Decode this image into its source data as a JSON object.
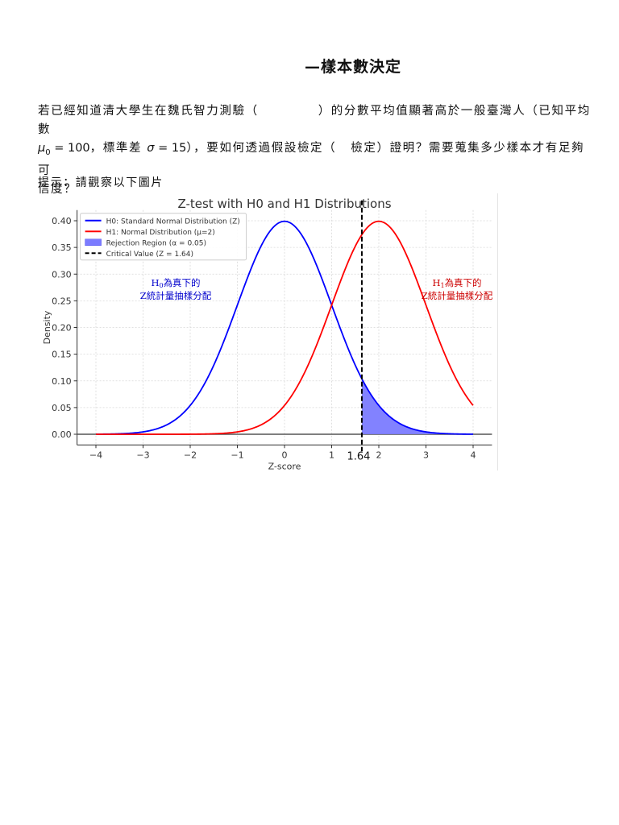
{
  "document": {
    "title": "—樣本數決定",
    "question": {
      "line1_a": "若已經知道清大學生在魏氏智力測驗（",
      "line1_b": "）的分數平均值顯著高於一般臺灣人（已知平均數",
      "line2_mu": "μ₀ = 100",
      "line2_a": "，標準差",
      "line2_sigma": "σ = 15",
      "line2_b": "），要如何透過假設檢定（",
      "line2_c": "檢定）證明？需要蒐集多少樣本才有足夠可",
      "line3": "信度？"
    },
    "hint": "提示：請觀察以下圖片"
  },
  "chart_data": {
    "type": "line",
    "title": "Z-test with H0 and H1 Distributions",
    "xlabel": "Z-score",
    "ylabel": "Density",
    "xlim": [
      -4.4,
      4.4
    ],
    "ylim": [
      -0.02,
      0.42
    ],
    "xticks": [
      -4,
      -3,
      -2,
      -1,
      0,
      1,
      2,
      3,
      4
    ],
    "xtick_labels": [
      "−4",
      "−3",
      "−2",
      "−1",
      "0",
      "1",
      "2",
      "3",
      "4"
    ],
    "yticks": [
      0.0,
      0.05,
      0.1,
      0.15,
      0.2,
      0.25,
      0.3,
      0.35,
      0.4
    ],
    "ytick_labels": [
      "0.00",
      "0.05",
      "0.10",
      "0.15",
      "0.20",
      "0.25",
      "0.30",
      "0.35",
      "0.40"
    ],
    "grid": true,
    "legend_position": "upper left",
    "series": [
      {
        "name": "H0: Standard Normal Distribution (Z)",
        "color": "#0000ff",
        "mean": 0,
        "sd": 1,
        "x": [
          -4,
          -3,
          -2,
          -1,
          0,
          1,
          1.64,
          2,
          3,
          4
        ],
        "values": [
          0.0001,
          0.0044,
          0.054,
          0.242,
          0.399,
          0.242,
          0.104,
          0.054,
          0.0044,
          0.0001
        ]
      },
      {
        "name": "H1: Normal Distribution (μ=2)",
        "color": "#ff0000",
        "mean": 2,
        "sd": 1,
        "x": [
          -4,
          -3,
          -2,
          -1,
          0,
          1,
          2,
          3,
          4
        ],
        "values": [
          0.0,
          0.0,
          0.0001,
          0.0044,
          0.054,
          0.242,
          0.399,
          0.242,
          0.054
        ]
      }
    ],
    "shaded_region": {
      "name": "Rejection Region (α = 0.05)",
      "color": "#7b7bff",
      "from": 1.64,
      "to": 4,
      "under": "H0"
    },
    "critical_line": {
      "name": "Critical Value (Z = 1.64)",
      "x": 1.64,
      "color": "#000000",
      "style": "dashed",
      "label": "1.64"
    },
    "legend": [
      "H0: Standard Normal Distribution (Z)",
      "H1: Normal Distribution (μ=2)",
      "Rejection Region (α = 0.05)",
      "Critical Value (Z = 1.64)"
    ],
    "annotations": [
      {
        "text_line1": "H0為真下的",
        "sub": "0",
        "text_line2": "Z統計量抽樣分配",
        "color": "#0000cc",
        "x": -2.3,
        "y": 0.28
      },
      {
        "text_line1": "H1為真下的",
        "sub": "1",
        "text_line2": "Z統計量抽樣分配",
        "color": "#cc0000",
        "x": 4.0,
        "y": 0.28
      }
    ]
  }
}
